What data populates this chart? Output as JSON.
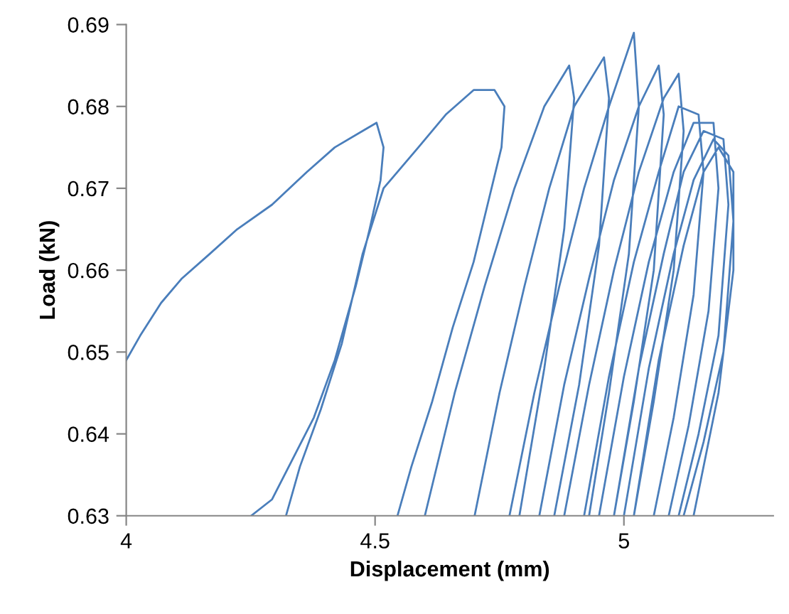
{
  "chart_data": {
    "type": "line",
    "xlabel": "Displacement (mm)",
    "ylabel": "Load (kN)",
    "xlim": [
      4,
      5.3
    ],
    "xticks": [
      4,
      4.5,
      5
    ],
    "ylim": [
      0.63,
      0.69
    ],
    "yticks": [
      0.63,
      0.64,
      0.65,
      0.66,
      0.67,
      0.68,
      0.69
    ],
    "grid": false,
    "marker": "none",
    "line_style": "solid",
    "series": [
      {
        "color": "#4a7ebb",
        "x": [
          4.0,
          4.028,
          4.07,
          4.112,
          4.168,
          4.223,
          4.293,
          4.363,
          4.419,
          4.475,
          4.503,
          4.517,
          4.511,
          4.489,
          4.461,
          4.419,
          4.377,
          4.335,
          4.293,
          4.251,
          null,
          4.321,
          4.349,
          4.391,
          4.433,
          4.475,
          4.517,
          4.587,
          4.642,
          4.698,
          4.74,
          4.76,
          4.754,
          4.726,
          4.698,
          4.656,
          4.615,
          4.573,
          4.545,
          null,
          4.6,
          4.66,
          4.72,
          4.78,
          4.84,
          4.89,
          4.9,
          4.88,
          4.84,
          4.79,
          null,
          4.7,
          4.75,
          4.8,
          4.85,
          4.9,
          4.96,
          4.97,
          4.95,
          4.91,
          4.86,
          null,
          4.77,
          4.82,
          4.87,
          4.92,
          4.97,
          5.02,
          5.03,
          5.01,
          4.97,
          4.93,
          null,
          4.83,
          4.88,
          4.93,
          4.98,
          5.03,
          5.07,
          5.08,
          5.06,
          5.02,
          4.98,
          null,
          4.88,
          4.93,
          4.98,
          5.03,
          5.08,
          5.11,
          5.12,
          5.1,
          5.06,
          5.02,
          null,
          4.92,
          4.97,
          5.02,
          5.07,
          5.11,
          5.15,
          5.16,
          5.14,
          5.1,
          5.06,
          null,
          4.95,
          5.0,
          5.05,
          5.1,
          5.14,
          5.18,
          5.19,
          5.17,
          5.13,
          5.09,
          null,
          4.98,
          5.03,
          5.08,
          5.12,
          5.16,
          5.2,
          5.21,
          5.19,
          5.15,
          5.11,
          null,
          5.0,
          5.05,
          5.1,
          5.14,
          5.18,
          5.21,
          5.22,
          5.2,
          5.16,
          5.12,
          null,
          5.02,
          5.07,
          5.12,
          5.16,
          5.19,
          5.22,
          5.22,
          5.19,
          5.14
        ],
        "values": [
          0.649,
          0.652,
          0.656,
          0.659,
          0.662,
          0.665,
          0.668,
          0.672,
          0.675,
          0.677,
          0.678,
          0.675,
          0.671,
          0.665,
          0.658,
          0.649,
          0.642,
          0.637,
          0.632,
          0.63,
          null,
          0.63,
          0.636,
          0.643,
          0.651,
          0.662,
          0.67,
          0.675,
          0.679,
          0.682,
          0.682,
          0.68,
          0.675,
          0.668,
          0.661,
          0.653,
          0.644,
          0.636,
          0.63,
          null,
          0.63,
          0.645,
          0.658,
          0.67,
          0.68,
          0.685,
          0.681,
          0.665,
          0.648,
          0.63,
          null,
          0.63,
          0.645,
          0.658,
          0.67,
          0.68,
          0.686,
          0.681,
          0.663,
          0.646,
          0.63,
          null,
          0.63,
          0.645,
          0.658,
          0.67,
          0.68,
          0.689,
          0.68,
          0.662,
          0.645,
          0.63,
          null,
          0.63,
          0.646,
          0.659,
          0.671,
          0.68,
          0.685,
          0.679,
          0.66,
          0.644,
          0.63,
          null,
          0.63,
          0.646,
          0.66,
          0.672,
          0.681,
          0.684,
          0.677,
          0.66,
          0.644,
          0.63,
          null,
          0.63,
          0.647,
          0.661,
          0.672,
          0.68,
          0.679,
          0.672,
          0.657,
          0.642,
          0.63,
          null,
          0.63,
          0.647,
          0.661,
          0.672,
          0.678,
          0.678,
          0.67,
          0.655,
          0.641,
          0.63,
          null,
          0.63,
          0.648,
          0.662,
          0.672,
          0.677,
          0.676,
          0.668,
          0.652,
          0.64,
          0.63,
          null,
          0.63,
          0.648,
          0.662,
          0.671,
          0.676,
          0.674,
          0.666,
          0.65,
          0.639,
          0.63,
          null,
          0.63,
          0.649,
          0.663,
          0.672,
          0.675,
          0.672,
          0.66,
          0.645,
          0.63
        ]
      }
    ]
  }
}
